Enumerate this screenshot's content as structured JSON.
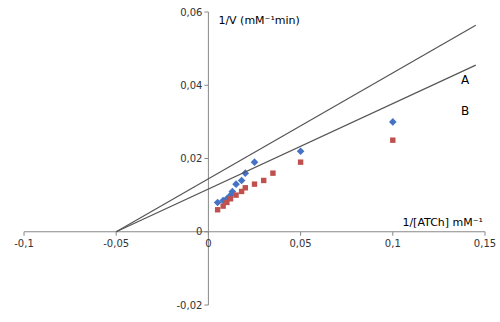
{
  "chart_data": {
    "type": "scatter",
    "ylabel": "1/V (mM⁻¹min)",
    "xlabel": "1/[ATCh] mM⁻¹",
    "xlim": [
      -0.1,
      0.15
    ],
    "ylim": [
      -0.02,
      0.06
    ],
    "xticks": [
      {
        "value": -0.1,
        "label": "-0,1"
      },
      {
        "value": -0.05,
        "label": "-0,05"
      },
      0,
      {
        "value": 0.05,
        "label": "0,05"
      },
      {
        "value": 0.1,
        "label": "0,1"
      },
      {
        "value": 0.15,
        "label": "0,15"
      }
    ],
    "yticks": [
      {
        "value": -0.02,
        "label": "-0,02"
      },
      0,
      {
        "value": 0.02,
        "label": "0,02"
      },
      {
        "value": 0.04,
        "label": "0,04"
      },
      {
        "value": 0.06,
        "label": "0,06"
      }
    ],
    "grid": false,
    "series": [
      {
        "type": "scatter",
        "color": "#4472c4",
        "marker": "diamond",
        "x": [
          0.005,
          0.008,
          0.01,
          0.012,
          0.013,
          0.015,
          0.018,
          0.02,
          0.025,
          0.05,
          0.1
        ],
        "values": [
          0.008,
          0.0085,
          0.009,
          0.01,
          0.011,
          0.013,
          0.014,
          0.016,
          0.019,
          0.022,
          0.03
        ]
      },
      {
        "type": "scatter",
        "color": "#c0504d",
        "marker": "square",
        "x": [
          0.005,
          0.008,
          0.01,
          0.012,
          0.015,
          0.018,
          0.02,
          0.025,
          0.03,
          0.035,
          0.05,
          0.1
        ],
        "values": [
          0.006,
          0.007,
          0.008,
          0.009,
          0.01,
          0.011,
          0.012,
          0.013,
          0.014,
          0.016,
          0.019,
          0.025
        ]
      },
      {
        "type": "line",
        "color": "#555555",
        "x": [
          -0.05,
          0.145
        ],
        "values": [
          0.0,
          0.0564
        ]
      },
      {
        "type": "line",
        "color": "#555555",
        "x": [
          -0.05,
          0.145
        ],
        "values": [
          0.0,
          0.0455
        ]
      }
    ],
    "annotations": [
      {
        "text": "A",
        "x": 0.137,
        "y": 0.0415
      },
      {
        "text": "B",
        "x": 0.137,
        "y": 0.033
      }
    ]
  }
}
